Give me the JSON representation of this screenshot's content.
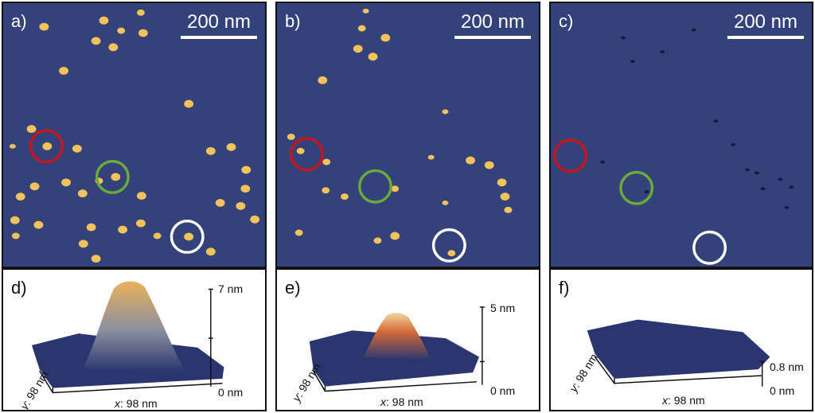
{
  "figure": {
    "panels_top": [
      {
        "id": "a",
        "label": "a)",
        "scale_text": "200 nm"
      },
      {
        "id": "b",
        "label": "b)",
        "scale_text": "200 nm"
      },
      {
        "id": "c",
        "label": "c)",
        "scale_text": "200 nm"
      }
    ],
    "panels_bottom": [
      {
        "id": "d",
        "label": "d)",
        "z_top": "7 nm",
        "z_bottom": "0 nm",
        "y_prefix": "y",
        "y_value": ": 98 nm",
        "x_prefix": "x",
        "x_value": ": 98 nm"
      },
      {
        "id": "e",
        "label": "e)",
        "z_top": "5 nm",
        "z_bottom": "0 nm",
        "y_prefix": "y",
        "y_value": ": 98 nm",
        "x_prefix": "x",
        "x_value": ": 98 nm"
      },
      {
        "id": "f",
        "label": "f)",
        "z_top": "0.8 nm",
        "z_bottom": "0 nm",
        "y_prefix": "y",
        "y_value": ": 98 nm",
        "x_prefix": "x",
        "x_value": ": 98 nm"
      }
    ],
    "colors": {
      "afm_background": "#33427a",
      "particle": "#f2c35a",
      "circle_red": "#c4161c",
      "circle_green": "#6aa93a",
      "circle_white": "#ffffff",
      "surface": "#2b3670",
      "peak": "#e8b25a"
    }
  }
}
